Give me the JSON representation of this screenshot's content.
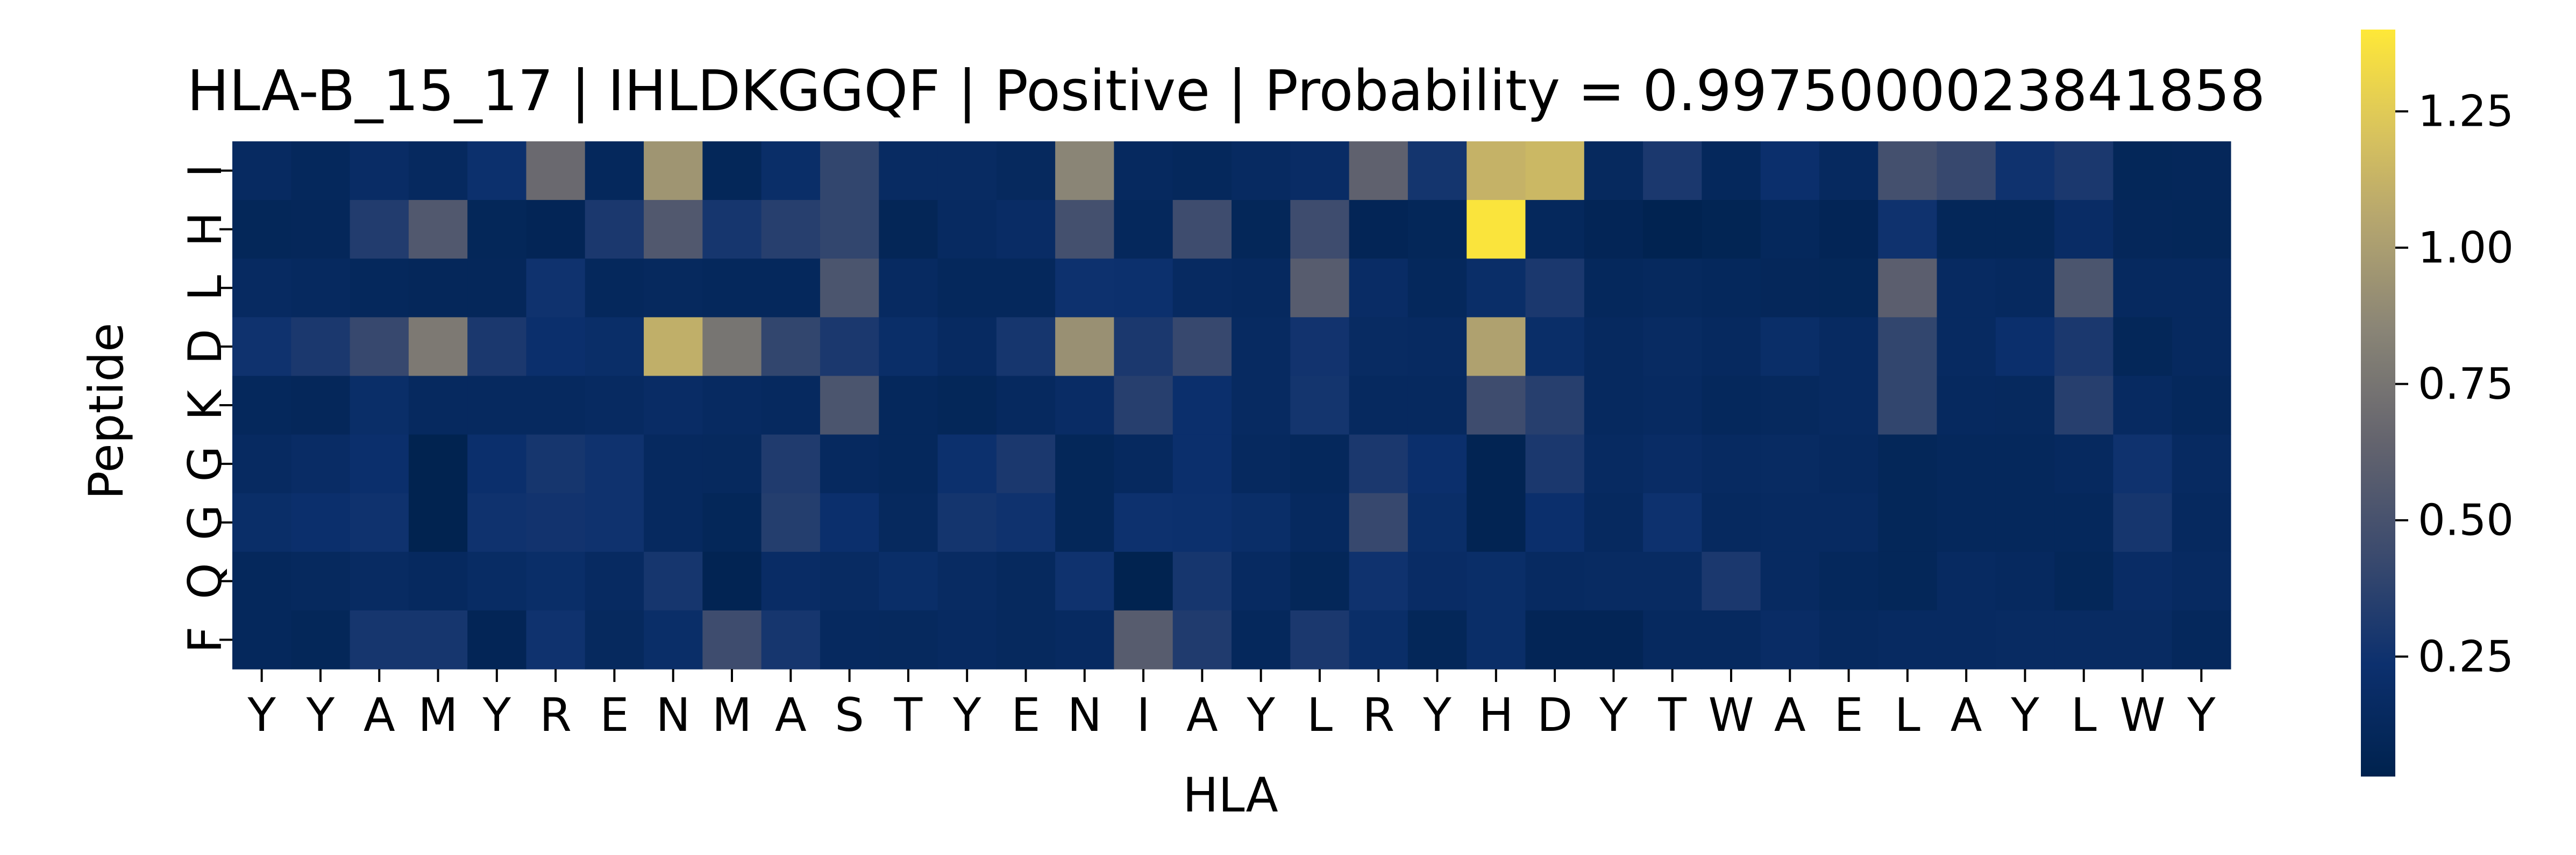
{
  "chart_data": {
    "type": "heatmap",
    "title": "HLA-B_15_17 | IHLDKGGQF | Positive | Probability = 0.9975000023841858",
    "xlabel": "HLA",
    "ylabel": "Peptide",
    "x_categories": [
      "Y",
      "Y",
      "A",
      "M",
      "Y",
      "R",
      "E",
      "N",
      "M",
      "A",
      "S",
      "T",
      "Y",
      "E",
      "N",
      "I",
      "A",
      "Y",
      "L",
      "R",
      "Y",
      "H",
      "D",
      "Y",
      "T",
      "W",
      "A",
      "E",
      "L",
      "A",
      "Y",
      "L",
      "W",
      "Y"
    ],
    "y_categories": [
      "I",
      "H",
      "L",
      "D",
      "K",
      "G",
      "G",
      "Q",
      "F"
    ],
    "colormap": "cividis",
    "colorbar": {
      "vmin": 0.03,
      "vmax": 1.4,
      "ticks": [
        0.25,
        0.5,
        0.75,
        1.0,
        1.25
      ],
      "tick_labels": [
        "0.25",
        "0.50",
        "0.75",
        "1.00",
        "1.25"
      ]
    },
    "values": [
      [
        0.15,
        0.12,
        0.18,
        0.14,
        0.23,
        0.68,
        0.12,
        0.95,
        0.1,
        0.2,
        0.4,
        0.16,
        0.16,
        0.13,
        0.85,
        0.14,
        0.12,
        0.15,
        0.18,
        0.62,
        0.27,
        1.12,
        1.15,
        0.13,
        0.3,
        0.12,
        0.22,
        0.14,
        0.48,
        0.42,
        0.25,
        0.3,
        0.1,
        0.11
      ],
      [
        0.1,
        0.11,
        0.33,
        0.55,
        0.1,
        0.08,
        0.3,
        0.55,
        0.28,
        0.35,
        0.4,
        0.09,
        0.15,
        0.18,
        0.48,
        0.12,
        0.45,
        0.1,
        0.45,
        0.08,
        0.1,
        1.38,
        0.12,
        0.08,
        0.05,
        0.07,
        0.12,
        0.08,
        0.25,
        0.1,
        0.1,
        0.18,
        0.11,
        0.1
      ],
      [
        0.15,
        0.14,
        0.12,
        0.11,
        0.11,
        0.25,
        0.12,
        0.13,
        0.12,
        0.12,
        0.52,
        0.15,
        0.12,
        0.12,
        0.24,
        0.23,
        0.15,
        0.14,
        0.58,
        0.18,
        0.12,
        0.2,
        0.3,
        0.12,
        0.13,
        0.12,
        0.11,
        0.1,
        0.6,
        0.15,
        0.14,
        0.52,
        0.14,
        0.14
      ],
      [
        0.25,
        0.3,
        0.42,
        0.78,
        0.3,
        0.22,
        0.2,
        1.1,
        0.75,
        0.4,
        0.3,
        0.2,
        0.15,
        0.28,
        0.92,
        0.3,
        0.42,
        0.15,
        0.26,
        0.16,
        0.15,
        1.02,
        0.2,
        0.14,
        0.16,
        0.14,
        0.2,
        0.15,
        0.4,
        0.15,
        0.22,
        0.3,
        0.1,
        0.14
      ],
      [
        0.12,
        0.11,
        0.2,
        0.14,
        0.14,
        0.14,
        0.15,
        0.18,
        0.15,
        0.14,
        0.52,
        0.12,
        0.1,
        0.14,
        0.18,
        0.35,
        0.22,
        0.15,
        0.27,
        0.14,
        0.14,
        0.45,
        0.35,
        0.14,
        0.15,
        0.12,
        0.13,
        0.15,
        0.4,
        0.14,
        0.13,
        0.35,
        0.15,
        0.12
      ],
      [
        0.15,
        0.18,
        0.22,
        0.04,
        0.22,
        0.28,
        0.25,
        0.14,
        0.13,
        0.32,
        0.14,
        0.12,
        0.23,
        0.3,
        0.1,
        0.14,
        0.22,
        0.14,
        0.12,
        0.3,
        0.22,
        0.06,
        0.3,
        0.15,
        0.18,
        0.15,
        0.16,
        0.14,
        0.1,
        0.12,
        0.12,
        0.14,
        0.25,
        0.15
      ],
      [
        0.2,
        0.22,
        0.25,
        0.04,
        0.25,
        0.26,
        0.25,
        0.14,
        0.1,
        0.34,
        0.22,
        0.13,
        0.27,
        0.25,
        0.1,
        0.24,
        0.23,
        0.2,
        0.14,
        0.42,
        0.2,
        0.06,
        0.22,
        0.14,
        0.24,
        0.14,
        0.15,
        0.15,
        0.1,
        0.12,
        0.12,
        0.12,
        0.28,
        0.14
      ],
      [
        0.12,
        0.13,
        0.16,
        0.14,
        0.17,
        0.2,
        0.15,
        0.28,
        0.06,
        0.18,
        0.16,
        0.2,
        0.16,
        0.13,
        0.25,
        0.04,
        0.28,
        0.15,
        0.1,
        0.25,
        0.18,
        0.2,
        0.15,
        0.16,
        0.16,
        0.3,
        0.15,
        0.12,
        0.1,
        0.15,
        0.14,
        0.1,
        0.18,
        0.15
      ],
      [
        0.12,
        0.1,
        0.28,
        0.28,
        0.08,
        0.25,
        0.13,
        0.2,
        0.45,
        0.28,
        0.14,
        0.13,
        0.15,
        0.13,
        0.15,
        0.58,
        0.32,
        0.12,
        0.3,
        0.2,
        0.1,
        0.2,
        0.08,
        0.08,
        0.14,
        0.14,
        0.18,
        0.14,
        0.15,
        0.15,
        0.16,
        0.16,
        0.16,
        0.12
      ]
    ]
  }
}
